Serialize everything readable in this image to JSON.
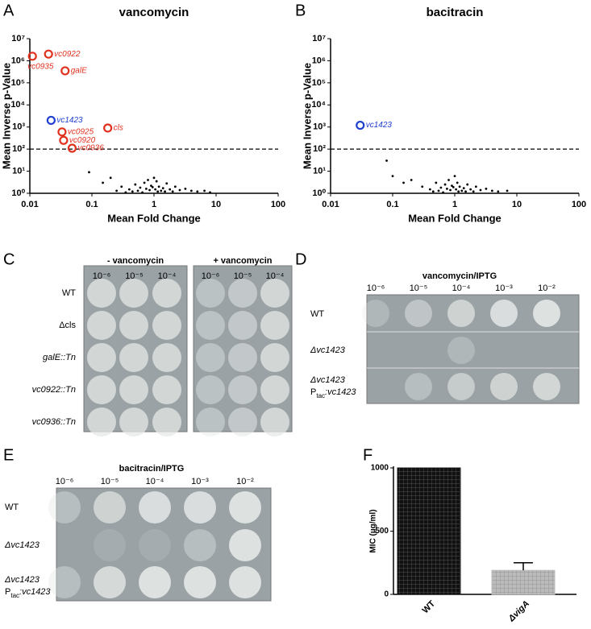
{
  "panel_letters": [
    "A",
    "B",
    "C",
    "D",
    "E",
    "F"
  ],
  "chart_data": [
    {
      "type": "scatter",
      "title": "vancomycin",
      "x_label": "Mean Fold Change",
      "y_label": "Mean Inverse p-Value",
      "log_x": true,
      "log_y": true,
      "xlim": [
        0.01,
        100
      ],
      "ylim": [
        1,
        10000000
      ],
      "xticks": [
        0.01,
        0.1,
        1,
        10,
        100
      ],
      "yticks": [
        {
          "value": 1,
          "label": "10⁰"
        },
        {
          "value": 10,
          "label": "10¹"
        },
        {
          "value": 100,
          "label": "10²"
        },
        {
          "value": 1000,
          "label": "10³"
        },
        {
          "value": 10000,
          "label": "10⁴"
        },
        {
          "value": 100000,
          "label": "10⁵"
        },
        {
          "value": 1000000,
          "label": "10⁶"
        },
        {
          "value": 10000000,
          "label": "10⁷"
        }
      ],
      "threshold": 100,
      "color": "#000000",
      "x": [
        0.09,
        0.15,
        0.2,
        0.3,
        0.4,
        0.5,
        0.6,
        0.7,
        0.8,
        0.9,
        1.0,
        1.1,
        1.2,
        1.4,
        1.6,
        1.8,
        2.2,
        2.6,
        3.2,
        4.0,
        5.0,
        6.5,
        8.0,
        0.45,
        0.55,
        0.75,
        0.85,
        0.95,
        1.05,
        1.3,
        1.5,
        2.0,
        0.65,
        1.15,
        0.35,
        0.25
      ],
      "y": [
        9,
        3,
        5,
        2,
        1.5,
        2.5,
        1.8,
        3,
        4,
        2.2,
        5,
        3.5,
        2,
        1.7,
        2.8,
        1.5,
        2,
        1.4,
        1.6,
        1.3,
        1.2,
        1.3,
        1.1,
        1.2,
        1.3,
        1.6,
        1.4,
        1.9,
        1.5,
        1.3,
        1.2,
        1.2,
        1.1,
        1.2,
        1.1,
        1.3
      ],
      "highlighted": {
        "labels": [
          "vc0935",
          "vc0922",
          "galE",
          "vc1423",
          "vc0925",
          "cls",
          "vc0920",
          "vc0936"
        ],
        "x": [
          0.011,
          0.02,
          0.037,
          0.022,
          0.033,
          0.18,
          0.035,
          0.048
        ],
        "y": [
          1600000,
          2000000,
          350000,
          2000,
          600,
          900,
          250,
          110
        ],
        "colors": [
          "#e0311f",
          "#e0311f",
          "#e0311f",
          "#1f3fd0",
          "#e0311f",
          "#e0311f",
          "#e0311f",
          "#e0311f"
        ]
      }
    },
    {
      "type": "scatter",
      "title": "bacitracin",
      "x_label": "Mean Fold Change",
      "y_label": "Mean Inverse p-Value",
      "log_x": true,
      "log_y": true,
      "xlim": [
        0.01,
        100
      ],
      "ylim": [
        1,
        10000000
      ],
      "xticks": [
        0.01,
        0.1,
        1,
        10,
        100
      ],
      "yticks": [
        {
          "value": 1,
          "label": "10⁰"
        },
        {
          "value": 10,
          "label": "10¹"
        },
        {
          "value": 100,
          "label": "10²"
        },
        {
          "value": 1000,
          "label": "10³"
        },
        {
          "value": 10000,
          "label": "10⁴"
        },
        {
          "value": 100000,
          "label": "10⁵"
        },
        {
          "value": 1000000,
          "label": "10⁶"
        },
        {
          "value": 10000000,
          "label": "10⁷"
        }
      ],
      "threshold": 100,
      "color": "#000000",
      "x": [
        0.08,
        0.1,
        0.15,
        0.2,
        0.3,
        0.4,
        0.5,
        0.6,
        0.7,
        0.8,
        0.9,
        1.0,
        1.1,
        1.2,
        1.4,
        1.6,
        1.8,
        2.2,
        2.6,
        3.2,
        4.0,
        5.0,
        7.0,
        0.45,
        0.55,
        0.75,
        0.85,
        0.95,
        1.05,
        1.3,
        1.5,
        2.0,
        0.65,
        1.15
      ],
      "y": [
        30,
        6,
        3,
        4,
        2,
        1.5,
        3,
        1.8,
        2.5,
        4,
        2.2,
        6,
        3,
        2,
        1.7,
        2.5,
        1.5,
        2,
        1.4,
        1.6,
        1.3,
        1.2,
        1.3,
        1.2,
        1.3,
        1.6,
        1.4,
        1.9,
        1.5,
        1.3,
        1.2,
        1.2,
        1.1,
        1.2
      ],
      "highlighted": {
        "labels": [
          "vc1423"
        ],
        "x": [
          0.03
        ],
        "y": [
          1200
        ],
        "colors": [
          "#1f3fd0"
        ]
      }
    },
    {
      "type": "bar",
      "y_label": "MIC (µg/ml)",
      "categories": [
        "WT",
        "ΔvigA"
      ],
      "values": [
        1000,
        190
      ],
      "errors": [
        0,
        60
      ],
      "ylim": [
        0,
        1000
      ],
      "yticks": [
        0,
        500,
        1000
      ],
      "colors": [
        "#111111",
        "#bbbbbb"
      ]
    }
  ],
  "plates": {
    "C": {
      "headers": [
        "- vancomycin",
        "+ vancomycin"
      ],
      "dilutions": [
        "10⁻⁶",
        "10⁻⁵",
        "10⁻⁴"
      ],
      "rows": [
        "WT",
        "Δcls",
        "galE::Tn",
        "vc0922::Tn",
        "vc0936::Tn"
      ]
    },
    "D": {
      "title": "vancomycin/IPTG",
      "dilutions": [
        "10⁻⁶",
        "10⁻⁵",
        "10⁻⁴",
        "10⁻³",
        "10⁻²"
      ],
      "rows": [
        "WT",
        "Δvc1423",
        "Δvc1423"
      ],
      "complement": {
        "p": "P",
        "sub": "tac",
        "rest": ":vc1423"
      }
    },
    "E": {
      "title": "bacitracin/IPTG",
      "dilutions": [
        "10⁻⁶",
        "10⁻⁵",
        "10⁻⁴",
        "10⁻³",
        "10⁻²"
      ],
      "rows": [
        "WT",
        "Δvc1423",
        "Δvc1423"
      ],
      "complement": {
        "p": "P",
        "sub": "tac",
        "rest": ":vc1423"
      }
    }
  }
}
